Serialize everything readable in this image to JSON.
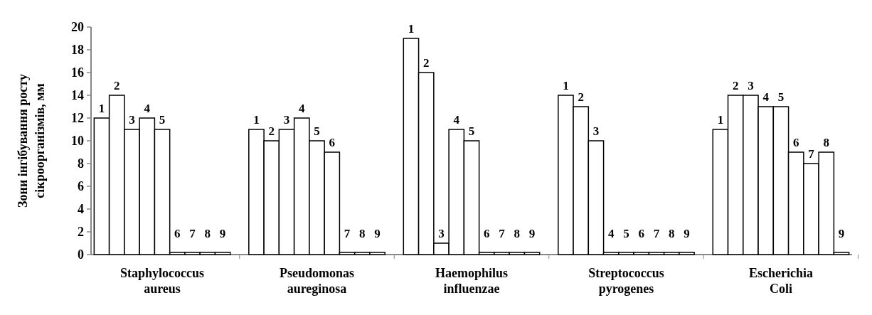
{
  "chart_data": {
    "type": "bar",
    "ylabel": "Зони інгібування росту\nсікроорганізмів, мм",
    "categories": [
      "Staphylococcus\naureus",
      "Pseudomonas\naureginosa",
      "Haemophilus\ninfluenzae",
      "Streptococcus\npyrogenes",
      "Escherichia\nColi"
    ],
    "series": [
      {
        "name": "1",
        "color": "#ffffff",
        "values": [
          12,
          11,
          19,
          14,
          11
        ]
      },
      {
        "name": "2",
        "color": "#ffffff",
        "values": [
          14,
          10,
          16,
          13,
          14
        ]
      },
      {
        "name": "3",
        "color": "#ffffff",
        "values": [
          11,
          11,
          1,
          10,
          14
        ]
      },
      {
        "name": "4",
        "color": "#ffffff",
        "values": [
          12,
          12,
          11,
          0,
          13
        ]
      },
      {
        "name": "5",
        "color": "#ffffff",
        "values": [
          11,
          10,
          10,
          0,
          13
        ]
      },
      {
        "name": "6",
        "color": "#ffffff",
        "values": [
          0,
          9,
          0,
          0,
          9
        ]
      },
      {
        "name": "7",
        "color": "#ffffff",
        "values": [
          0,
          0,
          0,
          0,
          8
        ]
      },
      {
        "name": "8",
        "color": "#ffffff",
        "values": [
          0,
          0,
          0,
          0,
          9
        ]
      },
      {
        "name": "9",
        "color": "#ffffff",
        "values": [
          0,
          0,
          0,
          0,
          0
        ]
      }
    ],
    "ylim": [
      0,
      20
    ],
    "yticks": [
      0,
      2,
      4,
      6,
      8,
      10,
      12,
      14,
      16,
      18,
      20
    ],
    "grid": false
  }
}
